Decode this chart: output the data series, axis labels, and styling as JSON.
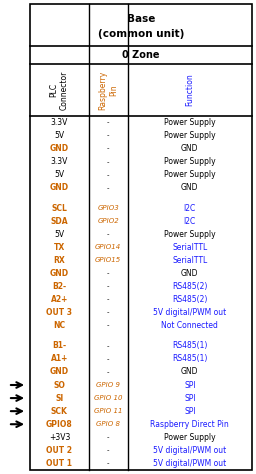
{
  "title1": "Base",
  "title2": "(common unit)",
  "zone": "0 Zone",
  "rows": [
    {
      "plc": "3.3V",
      "pin": "-",
      "func": "Power Supply",
      "bold_plc": false,
      "italic_pin": false,
      "blue_func": false,
      "arrow": false
    },
    {
      "plc": "5V",
      "pin": "-",
      "func": "Power Supply",
      "bold_plc": false,
      "italic_pin": false,
      "blue_func": false,
      "arrow": false
    },
    {
      "plc": "GND",
      "pin": "-",
      "func": "GND",
      "bold_plc": true,
      "italic_pin": false,
      "blue_func": false,
      "arrow": false
    },
    {
      "plc": "3.3V",
      "pin": "-",
      "func": "Power Supply",
      "bold_plc": false,
      "italic_pin": false,
      "blue_func": false,
      "arrow": false
    },
    {
      "plc": "5V",
      "pin": "-",
      "func": "Power Supply",
      "bold_plc": false,
      "italic_pin": false,
      "blue_func": false,
      "arrow": false
    },
    {
      "plc": "GND",
      "pin": "-",
      "func": "GND",
      "bold_plc": true,
      "italic_pin": false,
      "blue_func": false,
      "arrow": false
    },
    {
      "plc": "",
      "pin": "",
      "func": "",
      "bold_plc": false,
      "italic_pin": false,
      "blue_func": false,
      "arrow": false
    },
    {
      "plc": "SCL",
      "pin": "GPIO3",
      "func": "I2C",
      "bold_plc": true,
      "italic_pin": true,
      "blue_func": true,
      "arrow": false
    },
    {
      "plc": "SDA",
      "pin": "GPIO2",
      "func": "I2C",
      "bold_plc": true,
      "italic_pin": true,
      "blue_func": true,
      "arrow": false
    },
    {
      "plc": "5V",
      "pin": "-",
      "func": "Power Supply",
      "bold_plc": false,
      "italic_pin": false,
      "blue_func": false,
      "arrow": false
    },
    {
      "plc": "TX",
      "pin": "GPIO14",
      "func": "SerialTTL",
      "bold_plc": true,
      "italic_pin": true,
      "blue_func": true,
      "arrow": false
    },
    {
      "plc": "RX",
      "pin": "GPIO15",
      "func": "SerialTTL",
      "bold_plc": true,
      "italic_pin": true,
      "blue_func": true,
      "arrow": false
    },
    {
      "plc": "GND",
      "pin": "-",
      "func": "GND",
      "bold_plc": true,
      "italic_pin": false,
      "blue_func": false,
      "arrow": false
    },
    {
      "plc": "B2-",
      "pin": "-",
      "func": "RS485(2)",
      "bold_plc": true,
      "italic_pin": false,
      "blue_func": true,
      "arrow": false
    },
    {
      "plc": "A2+",
      "pin": "-",
      "func": "RS485(2)",
      "bold_plc": true,
      "italic_pin": false,
      "blue_func": true,
      "arrow": false
    },
    {
      "plc": "OUT 3",
      "pin": "-",
      "func": "5V digital/PWM out",
      "bold_plc": true,
      "italic_pin": false,
      "blue_func": true,
      "arrow": false
    },
    {
      "plc": "NC",
      "pin": "-",
      "func": "Not Connected",
      "bold_plc": true,
      "italic_pin": false,
      "blue_func": true,
      "arrow": false
    },
    {
      "plc": "",
      "pin": "",
      "func": "",
      "bold_plc": false,
      "italic_pin": false,
      "blue_func": false,
      "arrow": false
    },
    {
      "plc": "B1-",
      "pin": "-",
      "func": "RS485(1)",
      "bold_plc": true,
      "italic_pin": false,
      "blue_func": true,
      "arrow": false
    },
    {
      "plc": "A1+",
      "pin": "-",
      "func": "RS485(1)",
      "bold_plc": true,
      "italic_pin": false,
      "blue_func": true,
      "arrow": false
    },
    {
      "plc": "GND",
      "pin": "-",
      "func": "GND",
      "bold_plc": true,
      "italic_pin": false,
      "blue_func": false,
      "arrow": false
    },
    {
      "plc": "SO",
      "pin": "GPIO 9",
      "func": "SPI",
      "bold_plc": true,
      "italic_pin": true,
      "blue_func": true,
      "arrow": true
    },
    {
      "plc": "SI",
      "pin": "GPIO 10",
      "func": "SPI",
      "bold_plc": true,
      "italic_pin": true,
      "blue_func": true,
      "arrow": true
    },
    {
      "plc": "SCK",
      "pin": "GPIO 11",
      "func": "SPI",
      "bold_plc": true,
      "italic_pin": true,
      "blue_func": true,
      "arrow": true
    },
    {
      "plc": "GPIO8",
      "pin": "GPIO 8",
      "func": "Raspberry Direct Pin",
      "bold_plc": true,
      "italic_pin": true,
      "blue_func": true,
      "arrow": true
    },
    {
      "plc": "+3V3",
      "pin": "-",
      "func": "Power Supply",
      "bold_plc": false,
      "italic_pin": false,
      "blue_func": false,
      "arrow": false
    },
    {
      "plc": "OUT 2",
      "pin": "-",
      "func": "5V digital/PWM out",
      "bold_plc": true,
      "italic_pin": false,
      "blue_func": true,
      "arrow": false
    },
    {
      "plc": "OUT 1",
      "pin": "-",
      "func": "5V digital/PWM out",
      "bold_plc": true,
      "italic_pin": false,
      "blue_func": true,
      "arrow": false
    }
  ],
  "orange_color": "#cc6600",
  "blue_color": "#1a1aff",
  "black_color": "#000000"
}
